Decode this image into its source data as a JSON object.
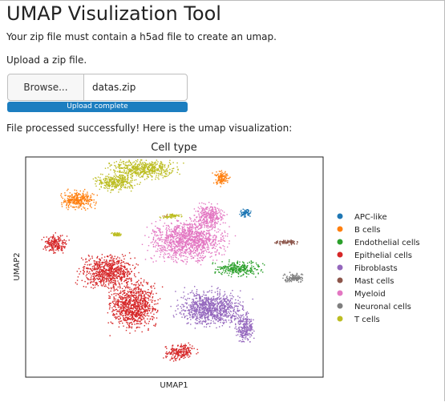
{
  "page": {
    "title": "UMAP Visulization Tool",
    "subtitle": "Your zip file must contain a h5ad file to create an umap.",
    "upload_label": "Upload a zip file.",
    "browse_label": "Browse...",
    "file_name": "datas.zip",
    "progress": {
      "label": "Upload complete",
      "fraction": 1.0
    },
    "status": "File processed successfully! Here is the umap visualization:"
  },
  "chart_data": {
    "type": "scatter",
    "title": "Cell type",
    "xlabel": "UMAP1",
    "ylabel": "UMAP2",
    "grid": false,
    "ticks": false,
    "legend_position": "right",
    "series": [
      {
        "name": "APC-like",
        "color": "#1f77b4"
      },
      {
        "name": "B cells",
        "color": "#ff7f0e"
      },
      {
        "name": "Endothelial cells",
        "color": "#2ca02c"
      },
      {
        "name": "Epithelial cells",
        "color": "#d62728"
      },
      {
        "name": "Fibroblasts",
        "color": "#9467bd"
      },
      {
        "name": "Mast cells",
        "color": "#8c564b"
      },
      {
        "name": "Myeloid",
        "color": "#e377c2"
      },
      {
        "name": "Neuronal cells",
        "color": "#7f7f7f"
      },
      {
        "name": "T cells",
        "color": "#bcbd22"
      }
    ]
  }
}
